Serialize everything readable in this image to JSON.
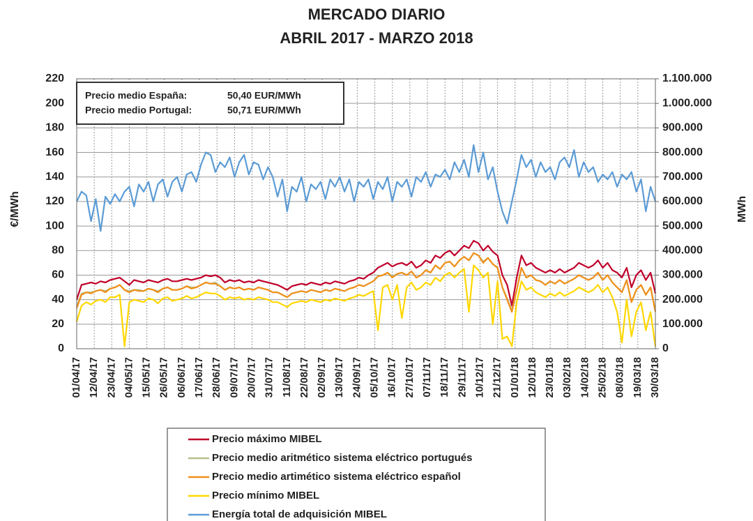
{
  "chart_data": {
    "type": "line",
    "title": [
      "MERCADO DIARIO",
      "ABRIL 2017 - MARZO 2018"
    ],
    "ylabel": "€/MWh",
    "y2label": "MWh",
    "annotations": [
      {
        "label": "Precio medio España:",
        "value": "50,40 EUR/MWh"
      },
      {
        "label": "Precio medio Portugal:",
        "value": "50,71 EUR/MWh"
      }
    ],
    "ylim": [
      0,
      220
    ],
    "yticks": [
      0,
      20,
      40,
      60,
      80,
      100,
      120,
      140,
      160,
      180,
      200,
      220
    ],
    "y2lim": [
      0,
      1100000
    ],
    "y2ticks": [
      {
        "value": 0,
        "label": "0"
      },
      {
        "value": 100000,
        "label": "100.000"
      },
      {
        "value": 200000,
        "label": "200.000"
      },
      {
        "value": 300000,
        "label": "300.000"
      },
      {
        "value": 400000,
        "label": "400.000"
      },
      {
        "value": 500000,
        "label": "500.000"
      },
      {
        "value": 600000,
        "label": "600.000"
      },
      {
        "value": 700000,
        "label": "700.000"
      },
      {
        "value": 800000,
        "label": "800.000"
      },
      {
        "value": 900000,
        "label": "900.000"
      },
      {
        "value": 1000000,
        "label": "1.000.000"
      },
      {
        "value": 1100000,
        "label": "1.100.000"
      }
    ],
    "xlim": [
      0,
      363
    ],
    "xticks": [
      {
        "value": 0,
        "label": "01/04/17"
      },
      {
        "value": 11,
        "label": "12/04/17"
      },
      {
        "value": 22,
        "label": "23/04/17"
      },
      {
        "value": 33,
        "label": "04/05/17"
      },
      {
        "value": 44,
        "label": "15/05/17"
      },
      {
        "value": 55,
        "label": "26/05/17"
      },
      {
        "value": 66,
        "label": "06/06/17"
      },
      {
        "value": 77,
        "label": "17/06/17"
      },
      {
        "value": 88,
        "label": "28/06/17"
      },
      {
        "value": 99,
        "label": "09/07/17"
      },
      {
        "value": 110,
        "label": "20/07/17"
      },
      {
        "value": 121,
        "label": "31/07/17"
      },
      {
        "value": 132,
        "label": "11/08/17"
      },
      {
        "value": 143,
        "label": "22/08/17"
      },
      {
        "value": 154,
        "label": "02/09/17"
      },
      {
        "value": 165,
        "label": "13/09/17"
      },
      {
        "value": 176,
        "label": "24/09/17"
      },
      {
        "value": 187,
        "label": "05/10/17"
      },
      {
        "value": 198,
        "label": "16/10/17"
      },
      {
        "value": 209,
        "label": "27/10/17"
      },
      {
        "value": 220,
        "label": "07/11/17"
      },
      {
        "value": 231,
        "label": "18/11/17"
      },
      {
        "value": 242,
        "label": "29/11/17"
      },
      {
        "value": 253,
        "label": "10/12/17"
      },
      {
        "value": 264,
        "label": "21/12/17"
      },
      {
        "value": 275,
        "label": "01/01/18"
      },
      {
        "value": 286,
        "label": "12/01/18"
      },
      {
        "value": 297,
        "label": "23/01/18"
      },
      {
        "value": 308,
        "label": "03/02/18"
      },
      {
        "value": 319,
        "label": "14/02/18"
      },
      {
        "value": 330,
        "label": "25/02/18"
      },
      {
        "value": 341,
        "label": "08/03/18"
      },
      {
        "value": 352,
        "label": "19/03/18"
      },
      {
        "value": 363,
        "label": "30/03/18"
      }
    ],
    "grid": true,
    "x": [
      0,
      3,
      6,
      9,
      12,
      15,
      18,
      21,
      24,
      27,
      30,
      33,
      36,
      39,
      42,
      45,
      48,
      51,
      54,
      57,
      60,
      63,
      66,
      69,
      72,
      75,
      78,
      81,
      84,
      87,
      90,
      93,
      96,
      99,
      102,
      105,
      108,
      111,
      114,
      117,
      120,
      123,
      126,
      129,
      132,
      135,
      138,
      141,
      144,
      147,
      150,
      153,
      156,
      159,
      162,
      165,
      168,
      171,
      174,
      177,
      180,
      183,
      186,
      189,
      192,
      195,
      198,
      201,
      204,
      207,
      210,
      213,
      216,
      219,
      222,
      225,
      228,
      231,
      234,
      237,
      240,
      243,
      246,
      249,
      252,
      255,
      258,
      261,
      264,
      267,
      270,
      273,
      276,
      279,
      282,
      285,
      288,
      291,
      294,
      297,
      300,
      303,
      306,
      309,
      312,
      315,
      318,
      321,
      324,
      327,
      330,
      333,
      336,
      339,
      342,
      345,
      348,
      351,
      354,
      357,
      360,
      363
    ],
    "series": [
      {
        "name": "Energía total de adquisición MIBEL",
        "color": "#5b9bd5",
        "axis": "y2",
        "values": [
          600000,
          640000,
          625000,
          520000,
          610000,
          480000,
          620000,
          590000,
          630000,
          600000,
          640000,
          660000,
          580000,
          670000,
          640000,
          680000,
          600000,
          670000,
          690000,
          620000,
          680000,
          700000,
          640000,
          710000,
          720000,
          680000,
          750000,
          800000,
          790000,
          720000,
          760000,
          740000,
          780000,
          700000,
          760000,
          790000,
          710000,
          760000,
          750000,
          690000,
          740000,
          700000,
          620000,
          690000,
          560000,
          660000,
          640000,
          700000,
          600000,
          670000,
          650000,
          680000,
          610000,
          690000,
          660000,
          700000,
          640000,
          690000,
          600000,
          680000,
          660000,
          690000,
          610000,
          680000,
          650000,
          700000,
          600000,
          680000,
          660000,
          690000,
          620000,
          700000,
          680000,
          720000,
          660000,
          710000,
          700000,
          730000,
          690000,
          760000,
          720000,
          770000,
          700000,
          830000,
          720000,
          800000,
          690000,
          740000,
          640000,
          560000,
          510000,
          600000,
          690000,
          790000,
          740000,
          770000,
          700000,
          760000,
          720000,
          740000,
          690000,
          760000,
          780000,
          740000,
          810000,
          700000,
          760000,
          720000,
          740000,
          680000,
          710000,
          690000,
          720000,
          660000,
          710000,
          690000,
          720000,
          640000,
          690000,
          560000,
          660000,
          600000
        ]
      },
      {
        "name": "Precio máximo MIBEL",
        "color": "#c0002a",
        "values": [
          40,
          52,
          53,
          54,
          53,
          55,
          54,
          56,
          57,
          58,
          55,
          52,
          56,
          55,
          54,
          56,
          55,
          54,
          56,
          57,
          55,
          55,
          56,
          57,
          56,
          57,
          58,
          60,
          59,
          60,
          58,
          54,
          56,
          55,
          56,
          54,
          55,
          54,
          56,
          55,
          54,
          53,
          52,
          50,
          48,
          51,
          52,
          53,
          52,
          54,
          53,
          52,
          54,
          53,
          55,
          54,
          53,
          55,
          56,
          58,
          57,
          60,
          62,
          66,
          68,
          70,
          67,
          69,
          70,
          68,
          71,
          66,
          68,
          72,
          70,
          76,
          74,
          78,
          80,
          76,
          80,
          84,
          82,
          88,
          86,
          80,
          84,
          79,
          76,
          60,
          52,
          35,
          58,
          76,
          68,
          70,
          66,
          64,
          62,
          64,
          62,
          65,
          62,
          64,
          66,
          70,
          68,
          66,
          68,
          72,
          66,
          70,
          64,
          62,
          58,
          66,
          50,
          60,
          64,
          56,
          62,
          45
        ]
      },
      {
        "name": "Precio medio aritmético sistema eléctrico portugués",
        "color": "#b5c08a",
        "values": [
          34,
          45,
          46,
          46,
          47,
          48,
          47,
          49,
          50,
          52,
          48,
          47,
          48,
          48,
          47,
          49,
          48,
          47,
          49,
          50,
          48,
          48,
          49,
          51,
          50,
          50,
          52,
          54,
          53,
          54,
          51,
          48,
          50,
          49,
          50,
          48,
          49,
          48,
          50,
          49,
          48,
          46,
          46,
          44,
          42,
          45,
          46,
          47,
          46,
          48,
          47,
          46,
          48,
          47,
          49,
          48,
          47,
          49,
          50,
          52,
          51,
          53,
          55,
          59,
          60,
          62,
          59,
          61,
          62,
          60,
          63,
          58,
          60,
          64,
          62,
          68,
          65,
          70,
          71,
          67,
          72,
          75,
          72,
          78,
          76,
          71,
          74,
          69,
          66,
          50,
          41,
          31,
          48,
          66,
          58,
          60,
          56,
          55,
          52,
          55,
          53,
          56,
          53,
          55,
          57,
          60,
          58,
          56,
          58,
          62,
          56,
          60,
          54,
          50,
          46,
          56,
          38,
          48,
          52,
          44,
          50,
          31
        ]
      },
      {
        "name": "Precio medio artimético sistema eléctrico español",
        "color": "#f0901a",
        "values": [
          33,
          44,
          46,
          45,
          47,
          48,
          46,
          49,
          50,
          52,
          48,
          46,
          48,
          47,
          47,
          49,
          48,
          46,
          49,
          50,
          48,
          48,
          49,
          51,
          49,
          50,
          52,
          54,
          53,
          53,
          51,
          48,
          50,
          49,
          50,
          48,
          49,
          48,
          50,
          49,
          48,
          46,
          46,
          44,
          42,
          45,
          46,
          47,
          46,
          48,
          47,
          46,
          48,
          47,
          49,
          48,
          47,
          49,
          50,
          52,
          51,
          53,
          55,
          59,
          60,
          62,
          58,
          61,
          62,
          60,
          63,
          58,
          60,
          64,
          62,
          68,
          65,
          70,
          71,
          67,
          72,
          75,
          72,
          78,
          76,
          70,
          74,
          69,
          66,
          50,
          40,
          30,
          48,
          66,
          58,
          60,
          56,
          55,
          52,
          55,
          53,
          56,
          53,
          55,
          57,
          60,
          58,
          56,
          58,
          62,
          56,
          60,
          54,
          50,
          46,
          56,
          38,
          48,
          52,
          44,
          50,
          30
        ]
      },
      {
        "name": "Precio mínimo MIBEL",
        "color": "#ffd700",
        "values": [
          22,
          35,
          38,
          36,
          39,
          40,
          38,
          42,
          42,
          44,
          2,
          38,
          40,
          39,
          38,
          41,
          40,
          37,
          41,
          42,
          39,
          40,
          41,
          43,
          41,
          42,
          44,
          46,
          45,
          45,
          43,
          40,
          42,
          41,
          42,
          40,
          41,
          40,
          42,
          41,
          40,
          38,
          38,
          36,
          34,
          37,
          38,
          39,
          38,
          40,
          39,
          38,
          40,
          39,
          41,
          40,
          39,
          41,
          42,
          44,
          43,
          45,
          47,
          15,
          50,
          52,
          40,
          52,
          25,
          50,
          54,
          48,
          50,
          54,
          52,
          58,
          55,
          60,
          62,
          58,
          62,
          65,
          30,
          68,
          64,
          58,
          62,
          20,
          55,
          8,
          10,
          2,
          38,
          55,
          48,
          50,
          46,
          44,
          42,
          45,
          43,
          46,
          43,
          45,
          47,
          50,
          48,
          46,
          48,
          52,
          46,
          50,
          42,
          30,
          5,
          40,
          10,
          30,
          38,
          15,
          30,
          2
        ]
      }
    ],
    "legend_order": [
      1,
      2,
      3,
      4,
      0
    ]
  }
}
